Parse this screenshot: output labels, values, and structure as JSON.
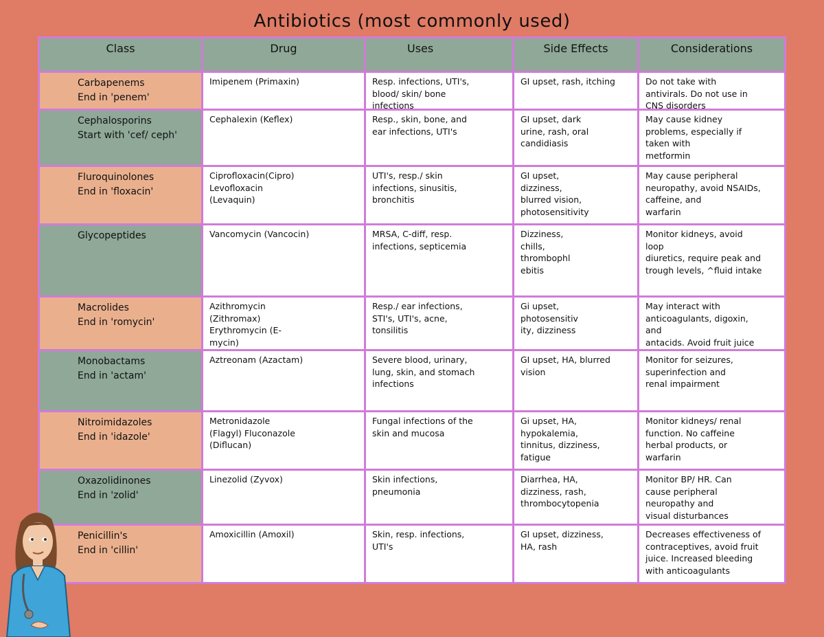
{
  "header": {
    "title": "Antibiotics (most commonly used)"
  },
  "table": {
    "columns": [
      "Class",
      "Drug",
      "Uses",
      "Side Effects",
      "Considerations"
    ],
    "rows": [
      [
        [
          "Carbapenems",
          "End in 'penem'"
        ],
        [
          "Imipenem (Primaxin)"
        ],
        [
          "Resp. infections, UTI's,",
          "blood/ skin/ bone",
          "infections"
        ],
        [
          "GI upset, rash, itching"
        ],
        [
          "Do not take with",
          "antivirals. Do not use in",
          "CNS disorders"
        ]
      ],
      [
        [
          "Cephalosporins",
          "Start with 'cef/ ceph'"
        ],
        [
          "Cephalexin (Keflex)"
        ],
        [
          "Resp., skin, bone, and",
          "ear infections, UTI's"
        ],
        [
          "GI upset, dark",
          "urine, rash, oral",
          "candidiasis"
        ],
        [
          "May cause kidney",
          "problems, especially if",
          "taken with",
          "metformin"
        ]
      ],
      [
        [
          "Fluroquinolones",
          "End in 'floxacin'"
        ],
        [
          "Ciprofloxacin(Cipro)",
          "Levofloxacin",
          "(Levaquin)"
        ],
        [
          "UTI's, resp./ skin",
          "infections, sinusitis,",
          "bronchitis"
        ],
        [
          "GI upset,",
          "dizziness,",
          "blurred vision,",
          "photosensitivity"
        ],
        [
          "May cause peripheral",
          "neuropathy, avoid NSAIDs,",
          "caffeine, and",
          "warfarin"
        ]
      ],
      [
        [
          "Glycopeptides"
        ],
        [
          "Vancomycin (Vancocin)"
        ],
        [
          "MRSA, C-diff, resp.",
          "infections, septicemia"
        ],
        [
          "Dizziness,",
          "chills,",
          "thrombophl",
          "ebitis"
        ],
        [
          "Monitor kidneys, avoid",
          "loop",
          "diuretics, require peak and",
          "trough levels, ^fluid intake"
        ]
      ],
      [
        [
          "Macrolides",
          "End in 'romycin'"
        ],
        [
          "Azithromycin",
          "(Zithromax)",
          "Erythromycin (E-",
          "mycin)"
        ],
        [
          "Resp./ ear infections,",
          "STI's, UTI's, acne,",
          "tonsilitis"
        ],
        [
          "Gi upset,",
          "photosensitiv",
          "ity, dizziness"
        ],
        [
          "May interact with",
          "anticoagulants, digoxin,",
          "and",
          "antacids. Avoid fruit juice"
        ]
      ],
      [
        [
          "Monobactams",
          "End in 'actam'"
        ],
        [
          "Aztreonam (Azactam)"
        ],
        [
          "Severe blood, urinary,",
          "lung, skin, and stomach",
          "infections"
        ],
        [
          "GI upset, HA, blurred",
          "vision"
        ],
        [
          "Monitor for seizures,",
          "superinfection and",
          "renal impairment"
        ]
      ],
      [
        [
          "Nitroimidazoles",
          "End in 'idazole'"
        ],
        [
          "Metronidazole",
          "(Flagyl) Fluconazole",
          "(Diflucan)"
        ],
        [
          "Fungal infections of the",
          "skin and mucosa"
        ],
        [
          "Gi upset, HA,",
          "hypokalemia,",
          "tinnitus, dizziness,",
          "fatigue"
        ],
        [
          "Monitor kidneys/ renal",
          "function. No caffeine",
          "herbal products, or",
          "warfarin"
        ]
      ],
      [
        [
          "Oxazolidinones",
          "End in 'zolid'"
        ],
        [
          "Linezolid (Zyvox)"
        ],
        [
          "Skin infections,",
          "pneumonia"
        ],
        [
          "Diarrhea, HA,",
          "dizziness, rash,",
          "thrombocytopenia"
        ],
        [
          "Monitor BP/ HR. Can",
          "cause peripheral",
          "neuropathy and",
          "visual disturbances"
        ]
      ],
      [
        [
          "Penicillin's",
          "End in 'cillin'"
        ],
        [
          "Amoxicillin (Amoxil)"
        ],
        [
          "Skin, resp. infections,",
          "UTI's"
        ],
        [
          "GI upset, dizziness,",
          "HA, rash"
        ],
        [
          "Decreases effectiveness of",
          "contraceptives, avoid fruit",
          "juice. Increased bleeding",
          "with anticoagulants"
        ]
      ]
    ]
  }
}
